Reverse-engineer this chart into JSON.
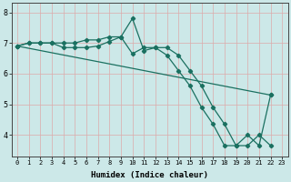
{
  "xlabel": "Humidex (Indice chaleur)",
  "background_color": "#cce8e8",
  "grid_color": "#ddaaaa",
  "line_color": "#1a7060",
  "xlim": [
    -0.5,
    23.5
  ],
  "ylim": [
    3.3,
    8.3
  ],
  "yticks": [
    4,
    5,
    6,
    7,
    8
  ],
  "xticks": [
    0,
    1,
    2,
    3,
    4,
    5,
    6,
    7,
    8,
    9,
    10,
    11,
    12,
    13,
    14,
    15,
    16,
    17,
    18,
    19,
    20,
    21,
    22,
    23
  ],
  "line1_x": [
    0,
    1,
    2,
    3,
    4,
    5,
    6,
    7,
    8,
    9,
    10,
    11,
    12,
    13,
    14,
    15,
    16,
    17,
    18,
    19,
    20,
    21,
    22
  ],
  "line1_y": [
    6.9,
    7.0,
    7.0,
    7.0,
    7.0,
    7.0,
    7.1,
    7.1,
    7.2,
    7.2,
    7.8,
    6.75,
    6.85,
    6.85,
    6.6,
    6.1,
    5.6,
    4.9,
    4.35,
    3.65,
    3.65,
    4.0,
    3.65
  ],
  "line2_x": [
    0,
    1,
    2,
    3,
    4,
    5,
    6,
    7,
    8,
    9,
    10,
    11,
    12,
    13,
    14,
    15,
    16,
    17,
    18,
    19,
    20,
    21,
    22
  ],
  "line2_y": [
    6.9,
    7.0,
    7.0,
    7.0,
    6.85,
    6.85,
    6.85,
    6.9,
    7.05,
    7.2,
    6.65,
    6.85,
    6.85,
    6.6,
    6.1,
    5.6,
    4.9,
    4.35,
    3.65,
    3.65,
    4.0,
    3.65,
    5.3
  ],
  "line3_x": [
    0,
    22
  ],
  "line3_y": [
    6.9,
    5.3
  ],
  "figsize": [
    3.2,
    2.0
  ],
  "dpi": 100
}
